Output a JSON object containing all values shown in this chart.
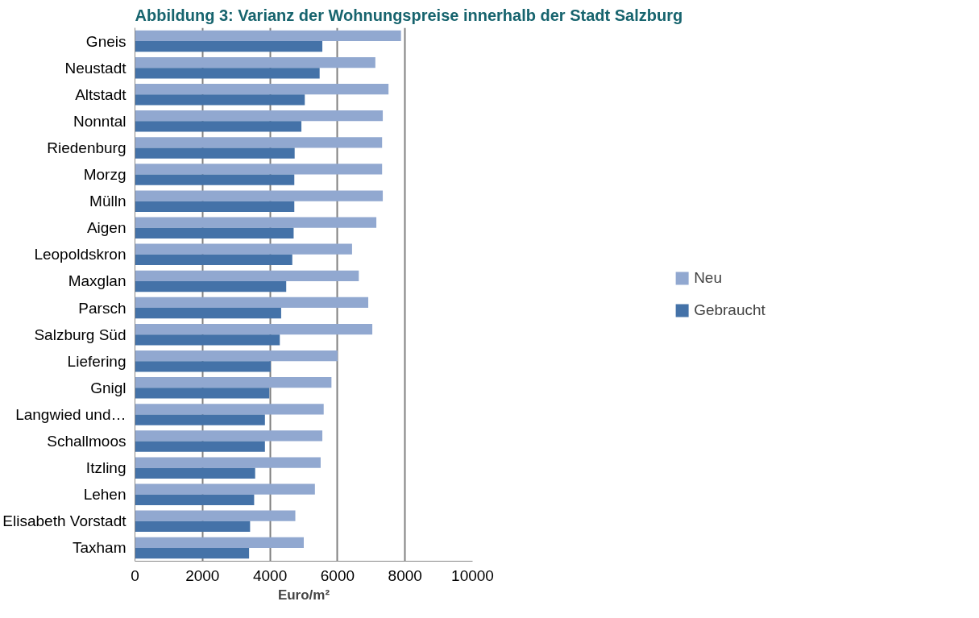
{
  "chart_data": {
    "type": "bar",
    "orientation": "horizontal",
    "title": "Abbildung 3: Varianz der Wohnungspreise innerhalb der Stadt Salzburg",
    "xlabel": "Euro/m²",
    "categories": [
      "Gneis",
      "Neustadt",
      "Altstadt",
      "Nonntal",
      "Riedenburg",
      "Morzg",
      "Mülln",
      "Aigen",
      "Leopoldskron",
      "Maxglan",
      "Parsch",
      "Salzburg Süd",
      "Liefering",
      "Gnigl",
      "Langwied und…",
      "Schallmoos",
      "Itzling",
      "Lehen",
      "Elisabeth Vorstadt",
      "Taxham"
    ],
    "series": [
      {
        "name": "Neu",
        "color": "#91a8d0",
        "values": [
          7880,
          7120,
          7510,
          7340,
          7320,
          7320,
          7340,
          7150,
          6430,
          6630,
          6910,
          7030,
          6000,
          5820,
          5590,
          5550,
          5500,
          5330,
          4750,
          5000
        ]
      },
      {
        "name": "Gebraucht",
        "color": "#4472a8",
        "values": [
          5550,
          5470,
          5030,
          4930,
          4730,
          4720,
          4720,
          4700,
          4660,
          4480,
          4330,
          4290,
          4020,
          3980,
          3850,
          3850,
          3560,
          3530,
          3410,
          3380
        ]
      }
    ],
    "xlim": [
      0,
      10000
    ],
    "xticks": [
      0,
      2000,
      4000,
      6000,
      8000,
      10000
    ],
    "grid": "x",
    "legend": "right"
  }
}
